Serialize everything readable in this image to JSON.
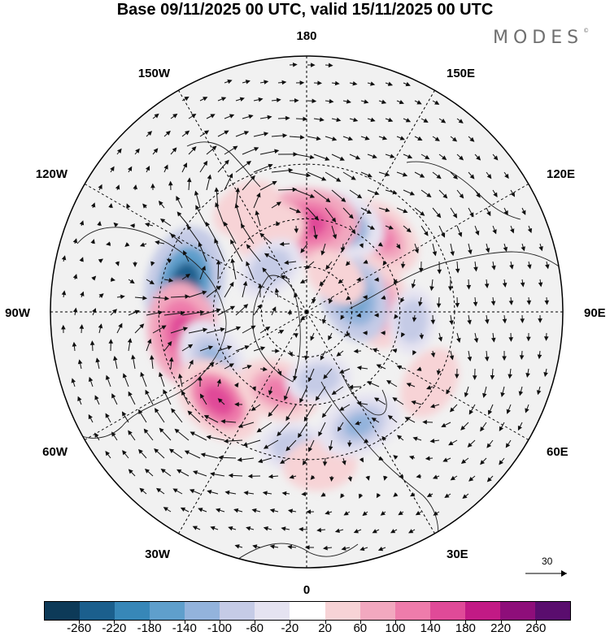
{
  "title": "Base 09/11/2025 00 UTC, valid 15/11/2025 00 UTC",
  "brand": "MODES",
  "brand_mark": "©",
  "longitude_labels": {
    "lon_180": "180",
    "lon_150e": "150E",
    "lon_120e": "120E",
    "lon_90e": "90E",
    "lon_60e": "60E",
    "lon_30e": "30E",
    "lon_0": "0",
    "lon_30w": "30W",
    "lon_60w": "60W",
    "lon_90w": "90W",
    "lon_120w": "120W",
    "lon_150w": "150W"
  },
  "colorbar": {
    "colors": [
      "#0d3a58",
      "#1b5f8d",
      "#3787b8",
      "#5f9fcc",
      "#93b3dc",
      "#c5cbe6",
      "#e5e3f1",
      "#ffffff",
      "#f7d3d6",
      "#f2a8bf",
      "#ee7cab",
      "#e04a98",
      "#c21a85",
      "#8e0e7a",
      "#5a0d6e"
    ],
    "tick_labels": [
      "-260",
      "-220",
      "-180",
      "-140",
      "-100",
      "-60",
      "-20",
      "20",
      "60",
      "100",
      "140",
      "180",
      "220",
      "260"
    ]
  },
  "vector_scale_label": "30",
  "anomalies": [
    {
      "lon": -103,
      "lat": 38,
      "value": -220
    },
    {
      "lon": -80,
      "lat": 38,
      "value": 180
    },
    {
      "lon": -62,
      "lat": 45,
      "value": -120
    },
    {
      "lon": -45,
      "lat": 38,
      "value": 150
    },
    {
      "lon": -20,
      "lat": 54,
      "value": 110
    },
    {
      "lon": -5,
      "lat": 34,
      "value": -60
    },
    {
      "lon": 5,
      "lat": 28,
      "value": 70
    },
    {
      "lon": 25,
      "lat": 38,
      "value": -110
    },
    {
      "lon": 60,
      "lat": 32,
      "value": 70
    },
    {
      "lon": 95,
      "lat": 58,
      "value": 110
    },
    {
      "lon": 110,
      "lat": 68,
      "value": -150
    },
    {
      "lon": 85,
      "lat": 45,
      "value": -40
    },
    {
      "lon": 135,
      "lat": 45,
      "value": 110
    },
    {
      "lon": 160,
      "lat": 50,
      "value": -140
    },
    {
      "lon": 180,
      "lat": 52,
      "value": 180
    },
    {
      "lon": -155,
      "lat": 52,
      "value": 70
    },
    {
      "lon": -140,
      "lat": 65,
      "value": -60
    },
    {
      "lon": 140,
      "lat": 70,
      "value": 40
    },
    {
      "lon": -150,
      "lat": 40,
      "value": 60
    },
    {
      "lon": 10,
      "lat": 60,
      "value": -40
    }
  ]
}
